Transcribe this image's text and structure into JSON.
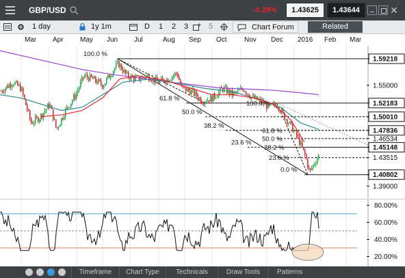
{
  "header": {
    "symbol": "GBP/USD",
    "change": "-0.29%",
    "bid": "1.43625",
    "ask": "1.43644"
  },
  "toolbar": {
    "period": "1 day",
    "range": "1y 1m",
    "d": "D",
    "one": "1",
    "two": "2",
    "three": "3",
    "five": "5",
    "forum": "Chart Forum",
    "related": "Related"
  },
  "months": [
    "Mar",
    "Apr",
    "May",
    "Jun",
    "Jul",
    "Aug",
    "Sep",
    "Oct",
    "Nov",
    "Dec",
    "2016",
    "Feb",
    "Mar"
  ],
  "price_axis": {
    "labels": [
      "1.59218",
      "1.55000",
      "1.52183",
      "1.50010",
      "1.47836",
      "1.46534",
      "1.45148",
      "1.43515",
      "1.40802",
      "1.39000"
    ],
    "highlighted": [
      "1.59218",
      "1.52183",
      "1.50010",
      "1.47836",
      "1.45148",
      "1.40802"
    ]
  },
  "fib_labels": {
    "first": [
      "100.0 %",
      "61.8 %",
      "50.0 %",
      "38.2 %",
      "23.6 %",
      "0.0 %"
    ],
    "second": [
      "100.0 %",
      "61.8 %",
      "50.0 %",
      "38.2 %",
      "23.6 %"
    ]
  },
  "osc_axis": [
    "80.00%",
    "60.00%",
    "40.00%",
    "20.00%"
  ],
  "bottom_tabs": [
    "Timeframe",
    "Chart Type",
    "Technicals",
    "Draw Tools",
    "Patterns"
  ],
  "colors": {
    "bull": "#23b14d",
    "bear": "#e8262e",
    "ma_fast": "#e8262e",
    "ma_mid": "#2b8a8a",
    "ma_slow": "#9b3fd6",
    "accent_bar": "#3c4145"
  }
}
